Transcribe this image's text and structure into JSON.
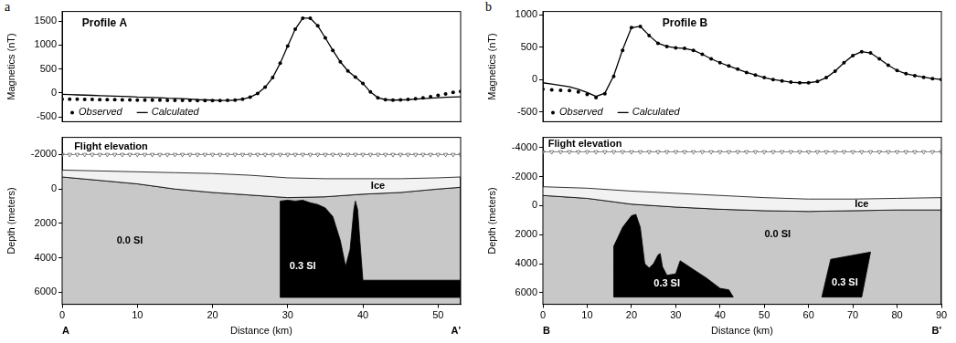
{
  "chart_data": [
    {
      "panel": "a",
      "type": "line",
      "title": "Profile A",
      "y_label": "Magnetics (nT)",
      "xlim": [
        0,
        53
      ],
      "ylim": [
        -600,
        1700
      ],
      "yticks": [
        -500,
        0,
        500,
        1000,
        1500
      ],
      "tick_labels": "y",
      "grid": false,
      "legend": "lower left",
      "series": [
        {
          "name": "Observed",
          "type": "scatter",
          "marker": "circle",
          "color": "#000000",
          "x": [
            0,
            1,
            2,
            3,
            4,
            5,
            6,
            7,
            8,
            9,
            10,
            11,
            12,
            13,
            14,
            15,
            16,
            17,
            18,
            19,
            20,
            21,
            22,
            23,
            24,
            25,
            26,
            27,
            28,
            29,
            30,
            31,
            32,
            33,
            34,
            35,
            36,
            37,
            38,
            39,
            40,
            41,
            42,
            43,
            44,
            45,
            46,
            47,
            48,
            49,
            50,
            51,
            52,
            53
          ],
          "values": [
            -130,
            -130,
            -130,
            -135,
            -135,
            -140,
            -140,
            -140,
            -145,
            -145,
            -150,
            -150,
            -150,
            -150,
            -155,
            -155,
            -155,
            -155,
            -160,
            -160,
            -160,
            -160,
            -155,
            -150,
            -130,
            -90,
            -10,
            120,
            320,
            620,
            980,
            1330,
            1560,
            1560,
            1400,
            1150,
            890,
            650,
            460,
            330,
            200,
            20,
            -100,
            -140,
            -150,
            -145,
            -135,
            -120,
            -100,
            -80,
            -50,
            -20,
            10,
            30
          ]
        },
        {
          "name": "Calculated",
          "type": "line",
          "line_style": "solid",
          "color": "#000000",
          "x": [
            0,
            1,
            2,
            3,
            4,
            5,
            6,
            7,
            8,
            9,
            10,
            11,
            12,
            13,
            14,
            15,
            16,
            17,
            18,
            19,
            20,
            21,
            22,
            23,
            24,
            25,
            26,
            27,
            28,
            29,
            30,
            31,
            32,
            33,
            34,
            35,
            36,
            37,
            38,
            39,
            40,
            41,
            42,
            43,
            44,
            45,
            46,
            47,
            48,
            49,
            50,
            51,
            52,
            53
          ],
          "values": [
            -30,
            -35,
            -40,
            -45,
            -50,
            -55,
            -60,
            -65,
            -70,
            -75,
            -85,
            -90,
            -95,
            -100,
            -110,
            -115,
            -120,
            -130,
            -140,
            -145,
            -150,
            -155,
            -155,
            -150,
            -130,
            -90,
            -10,
            120,
            320,
            620,
            980,
            1330,
            1560,
            1560,
            1400,
            1150,
            890,
            650,
            460,
            330,
            200,
            20,
            -100,
            -140,
            -150,
            -145,
            -140,
            -130,
            -120,
            -110,
            -100,
            -90,
            -85,
            -80
          ]
        }
      ]
    },
    {
      "panel": "a",
      "type": "area",
      "x_label": "Distance (km)",
      "y_label": "Depth (meters)",
      "xlim": [
        0,
        53
      ],
      "xticks": [
        0,
        10,
        20,
        30,
        40,
        50
      ],
      "ylim": [
        6700,
        -3000
      ],
      "yticks": [
        -2000,
        0,
        2000,
        4000,
        6000
      ],
      "grid": false,
      "endpoint_labels": [
        "A",
        "A'"
      ],
      "annotations": [
        {
          "text": "Flight elevation",
          "x": 6.5,
          "y": -2450
        },
        {
          "text": "Ice",
          "x": 42,
          "y": -170
        },
        {
          "text": "0.0 SI",
          "x": 9,
          "y": 3000
        },
        {
          "text": "0.3 SI",
          "x": 32,
          "y": 4500,
          "color": "#ffffff"
        }
      ],
      "series": [
        {
          "type": "polygon",
          "color": "#c8c8c8",
          "x": [
            0,
            5,
            10,
            15,
            20,
            25,
            30,
            35,
            40,
            45,
            50,
            53,
            53,
            0
          ],
          "values": [
            -700,
            -500,
            -300,
            0,
            200,
            350,
            500,
            450,
            300,
            200,
            0,
            -100,
            6700,
            6700
          ]
        },
        {
          "type": "polygon",
          "color": "#f2f2f2",
          "x": [
            0,
            5,
            10,
            15,
            20,
            25,
            30,
            35,
            40,
            45,
            50,
            53,
            53,
            50,
            45,
            40,
            35,
            30,
            25,
            20,
            15,
            10,
            5,
            0
          ],
          "values": [
            -1100,
            -1050,
            -1000,
            -950,
            -900,
            -800,
            -650,
            -600,
            -600,
            -600,
            -650,
            -700,
            -100,
            0,
            200,
            300,
            450,
            500,
            350,
            200,
            0,
            -300,
            -500,
            -700
          ]
        },
        {
          "type": "polygon",
          "color": "#000000",
          "x": [
            29,
            29,
            30,
            31,
            32,
            33,
            34,
            34.5,
            35,
            36,
            37,
            37.7,
            38.3,
            38.8,
            39,
            39.3,
            39.6,
            40,
            53,
            53,
            29
          ],
          "values": [
            6300,
            700,
            650,
            700,
            650,
            800,
            900,
            1000,
            1100,
            1600,
            3000,
            4500,
            3500,
            1200,
            700,
            1200,
            3000,
            5300,
            5300,
            6300,
            6300
          ]
        },
        {
          "type": "line",
          "marker": "triangle_down",
          "color": "#666666",
          "x": [
            0,
            1,
            2,
            3,
            4,
            5,
            6,
            7,
            8,
            9,
            10,
            11,
            12,
            13,
            14,
            15,
            16,
            17,
            18,
            19,
            20,
            21,
            22,
            23,
            24,
            25,
            26,
            27,
            28,
            29,
            30,
            31,
            32,
            33,
            34,
            35,
            36,
            37,
            38,
            39,
            40,
            41,
            42,
            43,
            44,
            45,
            46,
            47,
            48,
            49,
            50,
            51,
            52,
            53
          ],
          "values": [
            -2000,
            -2000,
            -2000,
            -2000,
            -2000,
            -2000,
            -2000,
            -2000,
            -2000,
            -2000,
            -2000,
            -2000,
            -2000,
            -2000,
            -2000,
            -2000,
            -2000,
            -2000,
            -2000,
            -2000,
            -2000,
            -2000,
            -2000,
            -2000,
            -2000,
            -2000,
            -2000,
            -2000,
            -2000,
            -2000,
            -2000,
            -2000,
            -2000,
            -2000,
            -2000,
            -2000,
            -2000,
            -2000,
            -2000,
            -2000,
            -2000,
            -2000,
            -2000,
            -2000,
            -2000,
            -2000,
            -2000,
            -2000,
            -2000,
            -2000,
            -2000,
            -2000,
            -2000,
            -2000
          ]
        }
      ]
    },
    {
      "panel": "b",
      "type": "line",
      "title": "Profile B",
      "y_label": "Magnetics (nT)",
      "xlim": [
        0,
        90
      ],
      "ylim": [
        -650,
        1050
      ],
      "yticks": [
        -500,
        0,
        500,
        1000
      ],
      "tick_labels": "y",
      "grid": false,
      "legend": "lower left",
      "series": [
        {
          "name": "Observed",
          "type": "scatter",
          "marker": "circle",
          "color": "#000000",
          "x": [
            0,
            2,
            4,
            6,
            8,
            10,
            12,
            14,
            16,
            18,
            20,
            22,
            24,
            26,
            28,
            30,
            32,
            34,
            36,
            38,
            40,
            42,
            44,
            46,
            48,
            50,
            52,
            54,
            56,
            58,
            60,
            62,
            64,
            66,
            68,
            70,
            72,
            74,
            76,
            78,
            80,
            82,
            84,
            86,
            88,
            90
          ],
          "values": [
            -150,
            -160,
            -165,
            -170,
            -190,
            -230,
            -280,
            -220,
            50,
            450,
            800,
            820,
            680,
            560,
            510,
            490,
            480,
            450,
            390,
            320,
            260,
            210,
            160,
            110,
            70,
            30,
            0,
            -20,
            -40,
            -50,
            -50,
            -30,
            30,
            130,
            260,
            370,
            430,
            410,
            320,
            220,
            140,
            90,
            60,
            35,
            15,
            0
          ]
        },
        {
          "name": "Calculated",
          "type": "line",
          "line_style": "solid",
          "color": "#000000",
          "x": [
            0,
            2,
            4,
            6,
            8,
            10,
            12,
            14,
            16,
            18,
            20,
            22,
            24,
            26,
            28,
            30,
            32,
            34,
            36,
            38,
            40,
            42,
            44,
            46,
            48,
            50,
            52,
            54,
            56,
            58,
            60,
            62,
            64,
            66,
            68,
            70,
            72,
            74,
            76,
            78,
            80,
            82,
            84,
            86,
            88,
            90
          ],
          "values": [
            -50,
            -70,
            -90,
            -110,
            -150,
            -200,
            -260,
            -210,
            60,
            460,
            800,
            820,
            680,
            560,
            510,
            490,
            480,
            450,
            390,
            320,
            260,
            210,
            160,
            110,
            70,
            30,
            0,
            -20,
            -40,
            -50,
            -50,
            -30,
            30,
            130,
            260,
            370,
            430,
            410,
            320,
            220,
            140,
            90,
            60,
            35,
            15,
            0
          ]
        }
      ]
    },
    {
      "panel": "b",
      "type": "area",
      "x_label": "Distance (km)",
      "y_label": "Depth (meters)",
      "xlim": [
        0,
        90
      ],
      "xticks": [
        0,
        10,
        20,
        30,
        40,
        50,
        60,
        70,
        80,
        90
      ],
      "ylim": [
        6800,
        -4700
      ],
      "yticks": [
        -4000,
        -2000,
        0,
        2000,
        4000,
        6000
      ],
      "grid": false,
      "endpoint_labels": [
        "B",
        "B'"
      ],
      "annotations": [
        {
          "text": "Flight elevation",
          "x": 9.5,
          "y": -4250
        },
        {
          "text": "Ice",
          "x": 72,
          "y": -100
        },
        {
          "text": "0.0 SI",
          "x": 53,
          "y": 2000
        },
        {
          "text": "0.3 SI",
          "x": 28,
          "y": 5400,
          "color": "#ffffff"
        },
        {
          "text": "0.3 SI",
          "x": 68.2,
          "y": 5300,
          "color": "#ffffff"
        }
      ],
      "series": [
        {
          "type": "polygon",
          "color": "#c8c8c8",
          "x": [
            0,
            10,
            20,
            30,
            40,
            50,
            60,
            70,
            80,
            90,
            90,
            0
          ],
          "values": [
            -700,
            -500,
            -100,
            100,
            250,
            350,
            400,
            350,
            300,
            300,
            6800,
            6800
          ]
        },
        {
          "type": "polygon",
          "color": "#f2f2f2",
          "x": [
            0,
            10,
            20,
            30,
            40,
            50,
            60,
            70,
            80,
            90,
            90,
            80,
            70,
            60,
            50,
            40,
            30,
            20,
            10,
            0
          ],
          "values": [
            -1300,
            -1200,
            -1000,
            -850,
            -700,
            -550,
            -450,
            -450,
            -500,
            -550,
            300,
            300,
            350,
            400,
            350,
            250,
            100,
            -100,
            -500,
            -700
          ]
        },
        {
          "type": "polygon",
          "color": "#000000",
          "x": [
            16,
            16,
            18,
            20,
            21,
            22,
            23,
            24,
            25,
            26,
            26.5,
            27,
            28,
            30,
            31,
            32,
            34,
            37,
            40,
            42,
            43,
            16
          ],
          "values": [
            6300,
            2800,
            1500,
            700,
            600,
            1500,
            4000,
            4300,
            4000,
            3400,
            3300,
            4200,
            4800,
            4700,
            3800,
            4000,
            4400,
            5000,
            5700,
            5800,
            6300,
            6300
          ]
        },
        {
          "type": "polygon",
          "color": "#000000",
          "x": [
            63,
            65,
            74,
            72,
            63
          ],
          "values": [
            6300,
            3700,
            3200,
            6300,
            6300
          ]
        },
        {
          "type": "line",
          "marker": "triangle_down",
          "color": "#666666",
          "x": [
            0,
            2,
            4,
            6,
            8,
            10,
            12,
            14,
            16,
            18,
            20,
            22,
            24,
            26,
            28,
            30,
            32,
            34,
            36,
            38,
            40,
            42,
            44,
            46,
            48,
            50,
            52,
            54,
            56,
            58,
            60,
            62,
            64,
            66,
            68,
            70,
            72,
            74,
            76,
            78,
            80,
            82,
            84,
            86,
            88,
            90
          ],
          "values": [
            -3700,
            -3700,
            -3700,
            -3700,
            -3700,
            -3700,
            -3700,
            -3700,
            -3700,
            -3700,
            -3700,
            -3700,
            -3700,
            -3700,
            -3700,
            -3700,
            -3700,
            -3700,
            -3700,
            -3700,
            -3700,
            -3700,
            -3700,
            -3700,
            -3700,
            -3700,
            -3700,
            -3700,
            -3700,
            -3700,
            -3700,
            -3700,
            -3700,
            -3700,
            -3700,
            -3700,
            -3700,
            -3700,
            -3700,
            -3700,
            -3700,
            -3700,
            -3700,
            -3700,
            -3700,
            -3700
          ]
        }
      ]
    }
  ]
}
